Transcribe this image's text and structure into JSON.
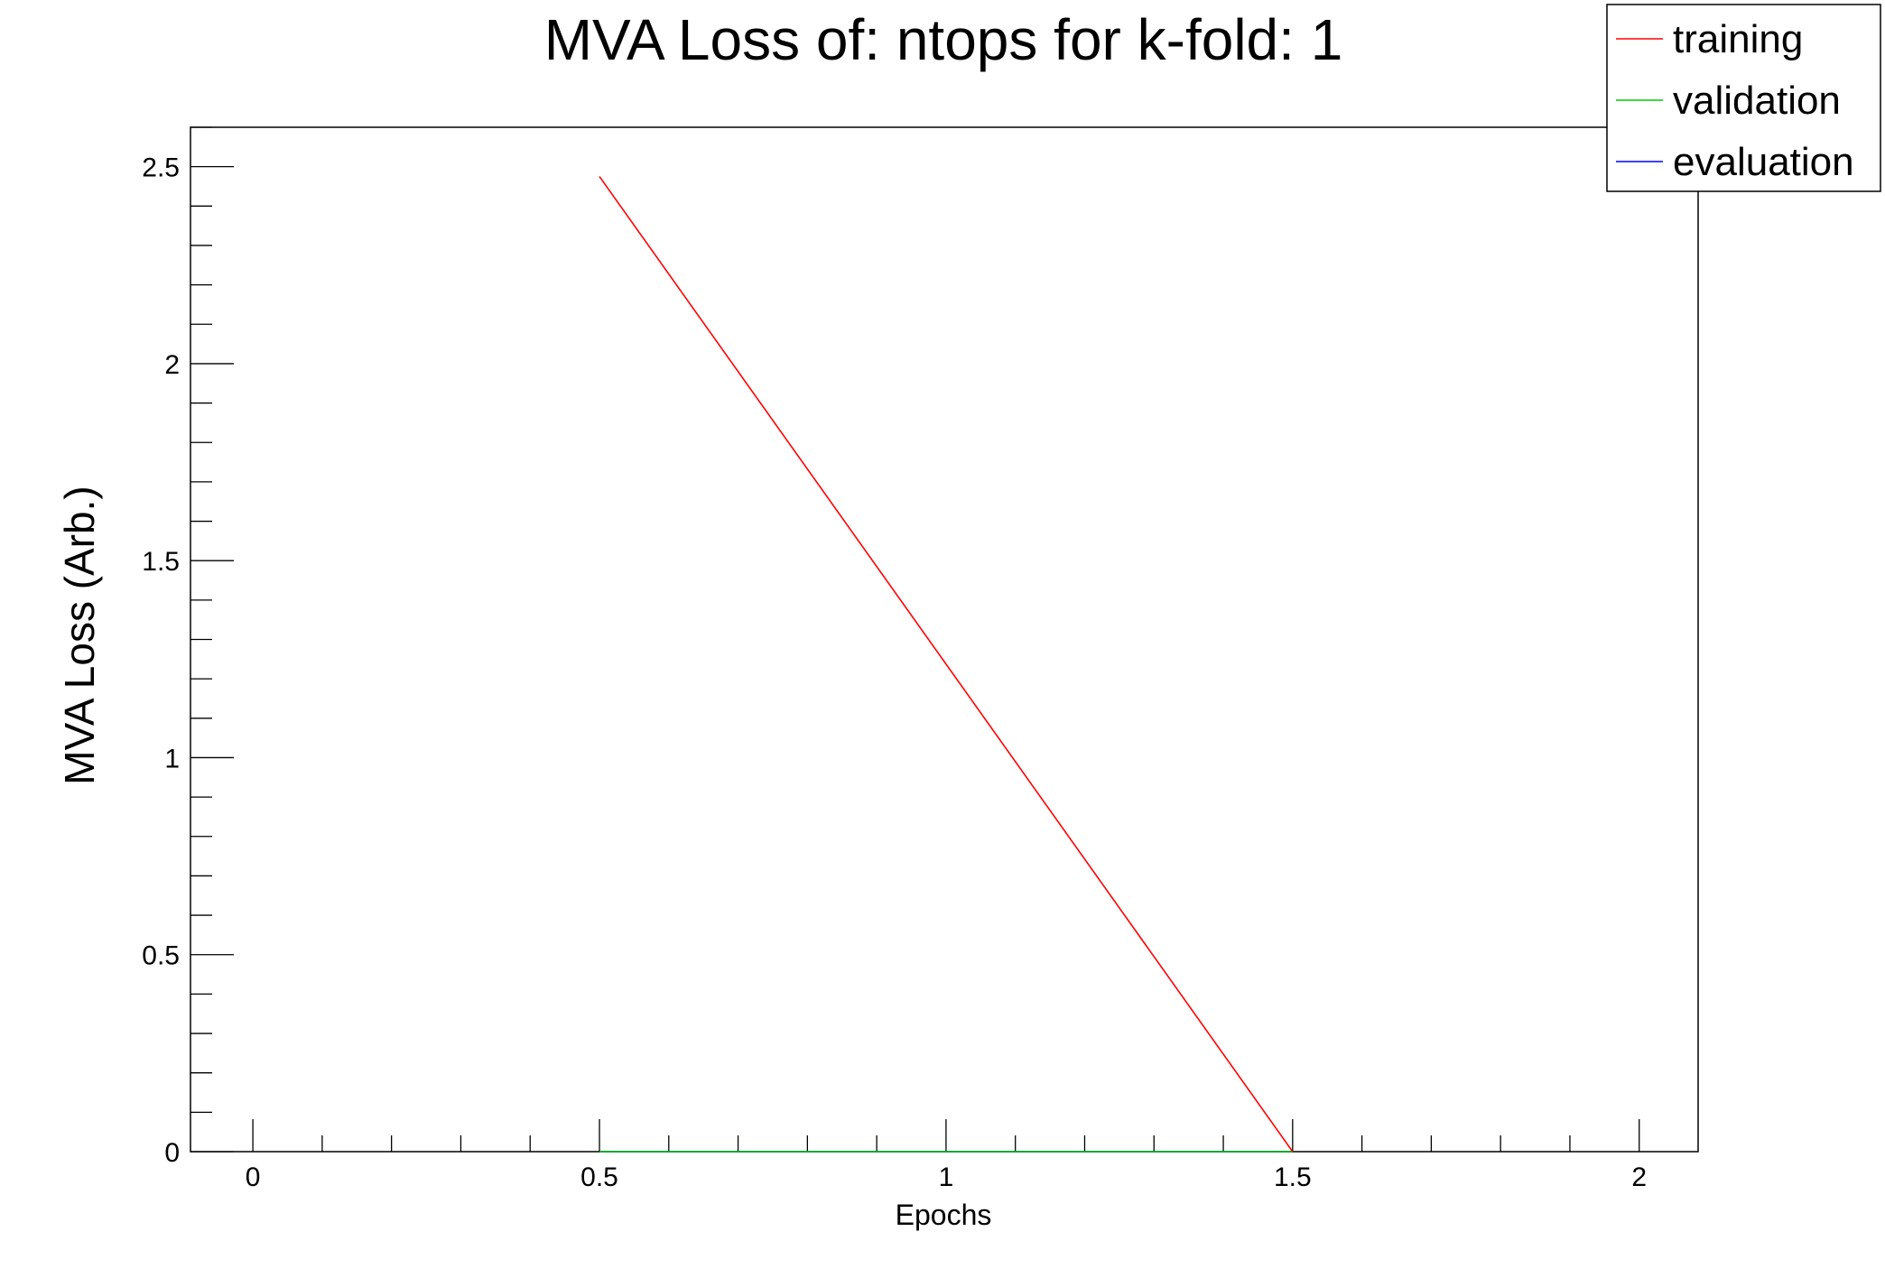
{
  "chart_data": {
    "type": "line",
    "title": "MVA Loss of: ntops for k-fold: 1",
    "xlabel": "Epochs",
    "ylabel": "MVA Loss (Arb.)",
    "xlim": [
      -0.09,
      2.085
    ],
    "ylim": [
      0,
      2.6
    ],
    "xticks": [
      0,
      0.5,
      1,
      1.5,
      2
    ],
    "xtick_labels": [
      "0",
      "0.5",
      "1",
      "1.5",
      "2"
    ],
    "yticks": [
      0,
      0.5,
      1,
      1.5,
      2,
      2.5
    ],
    "ytick_labels": [
      "0",
      "0.5",
      "1",
      "1.5",
      "2",
      "2.5"
    ],
    "grid": false,
    "legend_position": "top-right",
    "series": [
      {
        "name": "training",
        "color": "#ff0000",
        "x": [
          0.5,
          1.5
        ],
        "y": [
          2.475,
          0.0
        ]
      },
      {
        "name": "validation",
        "color": "#00cc00",
        "x": [
          0.5,
          1.5
        ],
        "y": [
          0.0,
          0.0
        ]
      },
      {
        "name": "evaluation",
        "color": "#0000ff",
        "x": [
          0.5,
          1.5
        ],
        "y": [
          0.0,
          0.0
        ]
      }
    ]
  }
}
